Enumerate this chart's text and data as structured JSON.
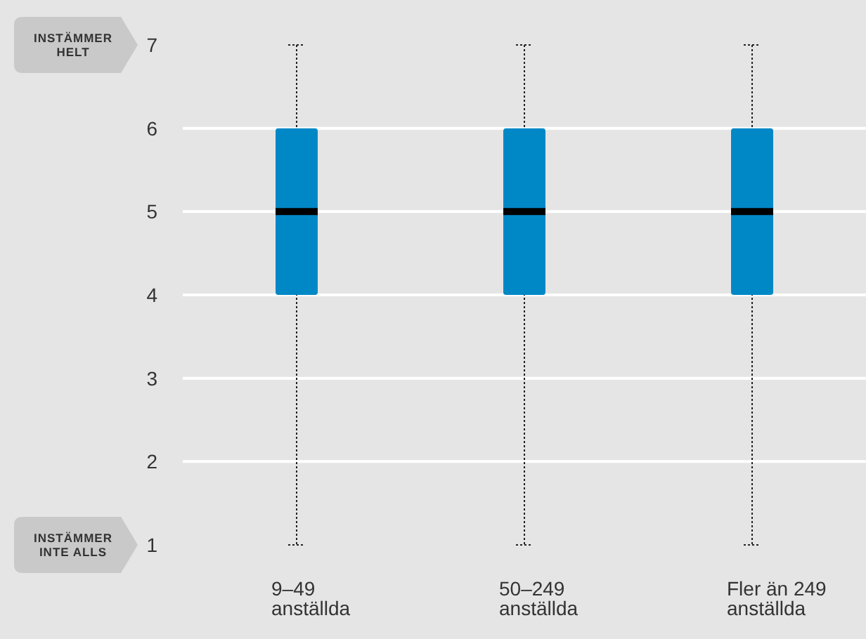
{
  "chart_data": {
    "type": "box",
    "categories": [
      "9–49 anställda",
      "50–249 anställda",
      "Fler än 249 anställda"
    ],
    "boxes": [
      {
        "low": 1,
        "q1": 4,
        "median": 5,
        "q3": 6,
        "high": 7
      },
      {
        "low": 1,
        "q1": 4,
        "median": 5,
        "q3": 6,
        "high": 7
      },
      {
        "low": 1,
        "q1": 4,
        "median": 5,
        "q3": 6,
        "high": 7
      }
    ],
    "color": "#0088c6",
    "ylim": [
      1,
      7
    ],
    "yticks": [
      1,
      2,
      3,
      4,
      5,
      6,
      7
    ],
    "grid": "y",
    "annotations": [
      "INSTÄMMER HELT",
      "INSTÄMMER INTE ALLS"
    ]
  }
}
